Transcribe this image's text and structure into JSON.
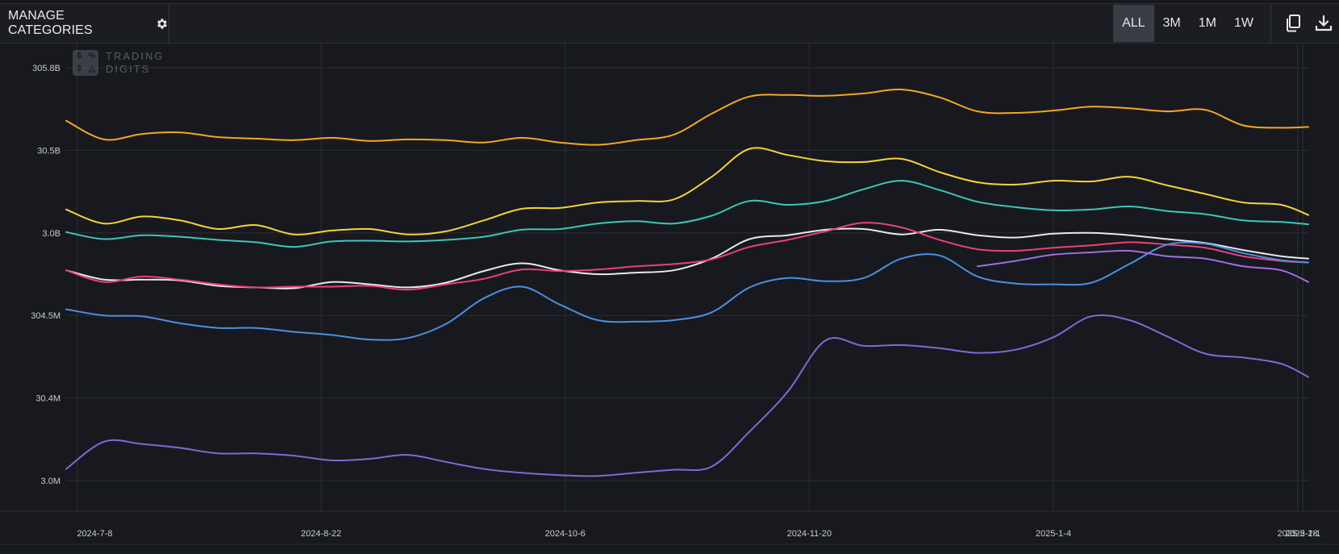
{
  "toolbar": {
    "manage_label": "MANAGE CATEGORIES",
    "ranges": [
      "ALL",
      "3M",
      "1M",
      "1W"
    ],
    "active_range": "ALL"
  },
  "watermark": {
    "line1": "TRADING",
    "line2": "DIGITS",
    "logo_glyphs": [
      "$",
      "%",
      "$",
      "△"
    ]
  },
  "chart_data": {
    "type": "line",
    "background": "#17191e",
    "grid": true,
    "y_tick_labels": [
      "305.8B",
      "30.5B",
      "3.0B",
      "304.5M",
      "30.4M",
      "3.0M"
    ],
    "x_tick_labels": [
      "2024-7-8",
      "2024-8-22",
      "2024-10-6",
      "2024-11-20",
      "2025-1-4",
      "2025-2-18",
      "2025-2-1"
    ],
    "xlim": [
      "2024-7-6",
      "2025-2-20"
    ],
    "ylim": [
      0,
      530
    ],
    "x": [
      "2024-7-6",
      "2024-7-13",
      "2024-7-20",
      "2024-7-27",
      "2024-8-3",
      "2024-8-10",
      "2024-8-17",
      "2024-8-24",
      "2024-8-31",
      "2024-9-7",
      "2024-9-14",
      "2024-9-21",
      "2024-9-28",
      "2024-10-5",
      "2024-10-12",
      "2024-10-19",
      "2024-10-26",
      "2024-11-2",
      "2024-11-9",
      "2024-11-16",
      "2024-11-23",
      "2024-11-30",
      "2024-12-7",
      "2024-12-14",
      "2024-12-21",
      "2024-12-28",
      "2025-1-4",
      "2025-1-11",
      "2025-1-18",
      "2025-1-25",
      "2025-2-1",
      "2025-2-8",
      "2025-2-15",
      "2025-2-20"
    ],
    "series": [
      {
        "color": "#f5a623",
        "values": [
          462,
          438,
          445,
          447,
          441,
          439,
          437,
          440,
          436,
          438,
          437,
          434,
          440,
          434,
          431,
          437,
          444,
          471,
          493,
          495,
          494,
          497,
          502,
          492,
          474,
          472,
          475,
          480,
          478,
          474,
          476,
          456,
          453,
          454
        ]
      },
      {
        "color": "#f7d23c",
        "values": [
          348,
          330,
          339,
          334,
          323,
          328,
          316,
          321,
          323,
          316,
          320,
          334,
          349,
          350,
          357,
          359,
          361,
          390,
          426,
          418,
          410,
          409,
          413,
          396,
          383,
          380,
          385,
          384,
          390,
          379,
          368,
          357,
          354,
          341
        ]
      },
      {
        "color": "#3cc7b8",
        "values": [
          319,
          310,
          315,
          313,
          309,
          306,
          300,
          307,
          308,
          307,
          309,
          313,
          322,
          323,
          330,
          333,
          330,
          340,
          359,
          354,
          359,
          374,
          385,
          373,
          358,
          351,
          347,
          348,
          352,
          346,
          342,
          334,
          332,
          329
        ]
      },
      {
        "color": "#e8e8ee",
        "values": [
          270,
          258,
          258,
          257,
          250,
          248,
          247,
          255,
          252,
          248,
          254,
          269,
          279,
          270,
          265,
          267,
          270,
          285,
          310,
          315,
          322,
          323,
          316,
          322,
          315,
          312,
          317,
          318,
          315,
          310,
          305,
          296,
          288,
          285
        ]
      },
      {
        "color": "#ec407a",
        "values": [
          270,
          255,
          262,
          258,
          252,
          248,
          249,
          249,
          250,
          245,
          252,
          259,
          271,
          269,
          271,
          275,
          278,
          284,
          300,
          309,
          320,
          331,
          325,
          309,
          297,
          295,
          299,
          302,
          306,
          303,
          299,
          288,
          282,
          280
        ]
      },
      {
        "color": "#4a90e2",
        "values": [
          220,
          212,
          211,
          202,
          196,
          196,
          191,
          187,
          181,
          183,
          201,
          234,
          249,
          226,
          206,
          204,
          206,
          216,
          248,
          260,
          256,
          260,
          285,
          289,
          262,
          253,
          252,
          254,
          278,
          303,
          304,
          292,
          283,
          280
        ]
      },
      {
        "color": "#a36be6",
        "values": [
          null,
          null,
          null,
          null,
          null,
          null,
          null,
          null,
          null,
          null,
          null,
          null,
          null,
          null,
          null,
          null,
          null,
          null,
          null,
          null,
          null,
          null,
          null,
          null,
          275,
          282,
          290,
          293,
          295,
          288,
          285,
          275,
          270,
          255
        ]
      },
      {
        "color": "#7c6bd6",
        "values": [
          15,
          50,
          47,
          42,
          35,
          35,
          32,
          26,
          28,
          33,
          24,
          15,
          10,
          7,
          6,
          10,
          14,
          18,
          63,
          114,
          180,
          173,
          174,
          170,
          164,
          168,
          184,
          211,
          206,
          185,
          163,
          158,
          150,
          133
        ]
      }
    ]
  }
}
